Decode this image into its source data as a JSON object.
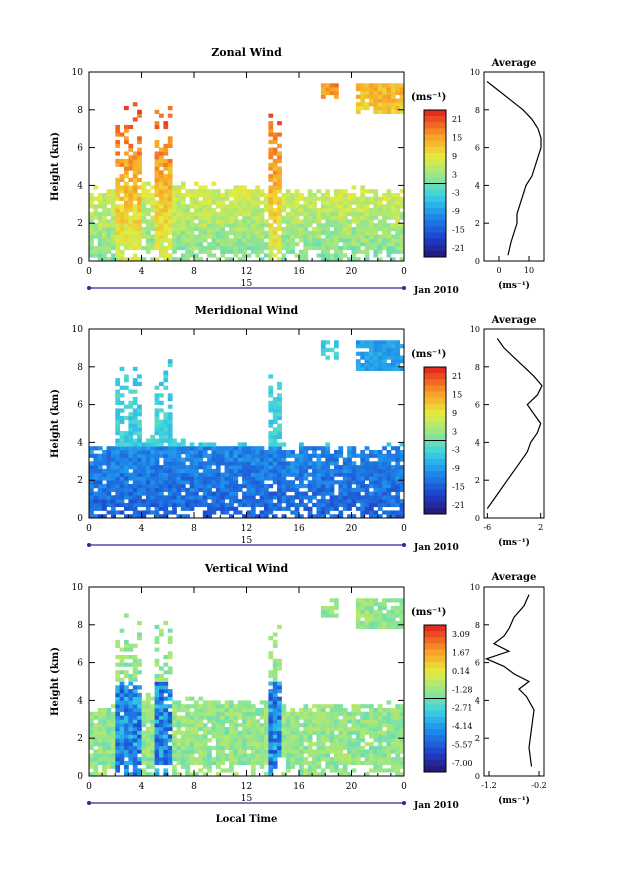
{
  "date_label": "Jan 2010",
  "date_tick": "15",
  "xlabel": "Local Time",
  "time_ticks": [
    "0",
    "4",
    "8",
    "12",
    "16",
    "20",
    "0"
  ],
  "unit_label": "(ms⁻¹)",
  "avg_unit_label": "(ms⁻¹)",
  "chart_data": [
    {
      "type": "heatmap",
      "title": "Zonal Wind",
      "ylabel": "Height (km)",
      "xlim": [
        0,
        24
      ],
      "ylim": [
        0,
        10
      ],
      "yticks": [
        "0",
        "2",
        "4",
        "6",
        "8",
        "10"
      ],
      "colorbar_ticks": [
        "21",
        "15",
        "9",
        "3",
        "-3",
        "-9",
        "-15",
        "-21"
      ],
      "colorbar_range": [
        -24,
        24
      ],
      "profile": {
        "title": "Average",
        "xticks": [
          "0",
          "10"
        ],
        "xlim": [
          -5,
          15
        ],
        "heights": [
          0.3,
          1.0,
          1.5,
          2.0,
          2.5,
          3.0,
          3.5,
          4.0,
          4.5,
          5.0,
          5.5,
          6.0,
          6.5,
          7.0,
          7.5,
          8.0,
          8.5,
          9.0,
          9.5
        ],
        "values": [
          3,
          4,
          5,
          6,
          6,
          7,
          8,
          9,
          11,
          12,
          13,
          14,
          14,
          13,
          11,
          8,
          4,
          0,
          -4
        ]
      }
    },
    {
      "type": "heatmap",
      "title": "Meridional Wind",
      "ylabel": "Height (km)",
      "xlim": [
        0,
        24
      ],
      "ylim": [
        0,
        10
      ],
      "yticks": [
        "0",
        "2",
        "4",
        "6",
        "8",
        "10"
      ],
      "colorbar_ticks": [
        "21",
        "15",
        "9",
        "3",
        "-3",
        "-9",
        "-15",
        "-21"
      ],
      "colorbar_range": [
        -24,
        24
      ],
      "profile": {
        "title": "Average",
        "xticks": [
          "-6",
          "2"
        ],
        "xlim": [
          -6.5,
          2.5
        ],
        "heights": [
          0.5,
          1.0,
          1.5,
          2.0,
          2.5,
          3.0,
          3.5,
          4.0,
          4.5,
          5.0,
          5.5,
          6.0,
          6.5,
          7.0,
          7.5,
          8.0,
          8.5,
          9.0,
          9.5
        ],
        "values": [
          -6,
          -5,
          -4,
          -3,
          -2,
          -1,
          0,
          0.5,
          1.5,
          2,
          1,
          0,
          1.5,
          2.2,
          1,
          -0.5,
          -2,
          -3.5,
          -4.5
        ]
      }
    },
    {
      "type": "heatmap",
      "title": "Vertical Wind",
      "ylabel": "Height (km)",
      "xlim": [
        0,
        24
      ],
      "ylim": [
        0,
        10
      ],
      "yticks": [
        "0",
        "2",
        "4",
        "6",
        "8",
        "10"
      ],
      "colorbar_ticks": [
        "3.09",
        "1.67",
        "0.14",
        "-1.28",
        "-2.71",
        "-4.14",
        "-5.57",
        "-7.00"
      ],
      "colorbar_range": [
        -7.7,
        3.8
      ],
      "profile": {
        "title": "Average",
        "xticks": [
          "-1.2",
          "-0.2"
        ],
        "xlim": [
          -1.3,
          -0.1
        ],
        "heights": [
          0.5,
          1.5,
          2.5,
          3.5,
          4.2,
          4.6,
          5.0,
          5.4,
          5.8,
          6.2,
          6.6,
          7.0,
          7.4,
          7.8,
          8.4,
          9.0,
          9.6
        ],
        "values": [
          -0.35,
          -0.4,
          -0.35,
          -0.3,
          -0.45,
          -0.6,
          -0.4,
          -0.7,
          -0.9,
          -1.25,
          -0.8,
          -1.1,
          -0.9,
          -0.8,
          -0.7,
          -0.5,
          -0.4
        ]
      }
    }
  ]
}
